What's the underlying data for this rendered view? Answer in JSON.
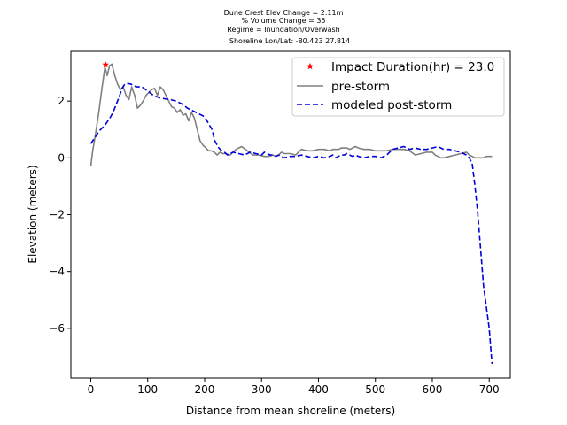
{
  "chart_data": {
    "type": "line",
    "title_lines": [
      "Dune Crest Elev Change = 2.11m",
      "% Volume Change = 35",
      "Regime = Inundation/Overwash",
      "Shoreline Lon/Lat: -80.423 27.814"
    ],
    "xlabel": "Distance from mean shoreline (meters)",
    "ylabel": "Elevation (meters)",
    "xlim": [
      -35,
      737
    ],
    "ylim": [
      -7.75,
      3.75
    ],
    "xticks": [
      0,
      100,
      200,
      300,
      400,
      500,
      600,
      700
    ],
    "yticks": [
      -6,
      -4,
      -2,
      0,
      2
    ],
    "ytick_labels": [
      "−6",
      "−4",
      "−2",
      "0",
      "2"
    ],
    "grid": false,
    "legend_position": "top-right",
    "legend": [
      "Impact Duration(hr) = 23.0",
      "pre-storm",
      "modeled post-storm"
    ],
    "colors": {
      "pre_storm": "#808080",
      "post_storm": "#0000dd",
      "impact_marker": "#ff0000"
    },
    "impact_point": {
      "x": 26,
      "y": 3.28
    },
    "series": [
      {
        "name": "pre-storm",
        "style": "solid",
        "x": [
          0,
          3,
          8,
          14,
          20,
          25,
          29,
          33,
          37,
          42,
          47,
          52,
          57,
          62,
          67,
          72,
          77,
          82,
          87,
          92,
          97,
          102,
          107,
          112,
          117,
          122,
          127,
          132,
          137,
          142,
          147,
          152,
          157,
          162,
          167,
          172,
          177,
          182,
          187,
          192,
          197,
          202,
          207,
          212,
          217,
          222,
          227,
          232,
          237,
          245,
          255,
          265,
          275,
          285,
          295,
          305,
          312,
          320,
          325,
          330,
          335,
          340,
          350,
          360,
          370,
          380,
          390,
          400,
          410,
          420,
          425,
          430,
          435,
          440,
          445,
          450,
          455,
          460,
          465,
          470,
          480,
          490,
          500,
          510,
          520,
          530,
          540,
          550,
          560,
          570,
          580,
          590,
          600,
          605,
          610,
          615,
          620,
          630,
          640,
          650,
          660,
          665,
          670,
          675,
          680,
          690,
          695,
          700,
          705
        ],
        "y": [
          -0.3,
          0.2,
          0.8,
          1.6,
          2.5,
          3.2,
          2.9,
          3.25,
          3.3,
          2.9,
          2.6,
          2.4,
          2.5,
          2.2,
          2.05,
          2.5,
          2.2,
          1.75,
          1.85,
          2.0,
          2.2,
          2.3,
          2.4,
          2.45,
          2.2,
          2.5,
          2.4,
          2.2,
          2.0,
          1.8,
          1.75,
          1.6,
          1.7,
          1.5,
          1.55,
          1.3,
          1.6,
          1.4,
          1.0,
          0.6,
          0.45,
          0.35,
          0.25,
          0.25,
          0.2,
          0.1,
          0.2,
          0.15,
          0.15,
          0.1,
          0.3,
          0.4,
          0.25,
          0.1,
          0.1,
          0.05,
          0.05,
          0.1,
          0.05,
          0.1,
          0.2,
          0.15,
          0.15,
          0.1,
          0.3,
          0.25,
          0.25,
          0.3,
          0.3,
          0.25,
          0.3,
          0.3,
          0.3,
          0.35,
          0.35,
          0.35,
          0.3,
          0.35,
          0.4,
          0.35,
          0.3,
          0.3,
          0.25,
          0.25,
          0.25,
          0.3,
          0.3,
          0.3,
          0.25,
          0.1,
          0.15,
          0.2,
          0.2,
          0.1,
          0.05,
          0.0,
          0.0,
          0.05,
          0.1,
          0.15,
          0.2,
          0.1,
          0.05,
          0.0,
          0.0,
          0.0,
          0.05,
          0.05,
          0.05
        ]
      },
      {
        "name": "modeled post-storm",
        "style": "dashed",
        "x": [
          0,
          5,
          10,
          15,
          20,
          25,
          30,
          35,
          40,
          45,
          50,
          55,
          60,
          65,
          70,
          75,
          80,
          90,
          100,
          110,
          120,
          130,
          140,
          150,
          160,
          170,
          180,
          190,
          200,
          207,
          213,
          218,
          225,
          230,
          235,
          240,
          250,
          260,
          270,
          280,
          290,
          300,
          305,
          310,
          315,
          320,
          325,
          330,
          335,
          340,
          350,
          360,
          370,
          380,
          390,
          400,
          410,
          420,
          425,
          430,
          435,
          440,
          445,
          450,
          455,
          460,
          465,
          470,
          480,
          490,
          500,
          510,
          520,
          530,
          540,
          550,
          560,
          570,
          580,
          590,
          600,
          610,
          620,
          630,
          640,
          650,
          655,
          660,
          665,
          670,
          675,
          680,
          690,
          700,
          705
        ],
        "y": [
          0.5,
          0.65,
          0.8,
          0.95,
          1.05,
          1.15,
          1.3,
          1.45,
          1.65,
          1.9,
          2.15,
          2.45,
          2.6,
          2.62,
          2.6,
          2.55,
          2.5,
          2.5,
          2.35,
          2.2,
          2.12,
          2.08,
          2.05,
          2.0,
          1.9,
          1.75,
          1.65,
          1.55,
          1.45,
          1.2,
          1.0,
          0.6,
          0.35,
          0.25,
          0.2,
          0.1,
          0.2,
          0.15,
          0.1,
          0.2,
          0.15,
          0.1,
          0.2,
          0.15,
          0.1,
          0.1,
          0.05,
          0.1,
          0.05,
          0.0,
          0.05,
          0.05,
          0.1,
          0.05,
          0.0,
          0.05,
          0.0,
          0.05,
          0.1,
          0.0,
          0.05,
          0.1,
          0.1,
          0.15,
          0.1,
          0.05,
          0.1,
          0.05,
          0.0,
          0.05,
          0.05,
          0.0,
          0.1,
          0.3,
          0.35,
          0.4,
          0.3,
          0.35,
          0.3,
          0.3,
          0.35,
          0.4,
          0.3,
          0.3,
          0.25,
          0.2,
          0.15,
          0.1,
          0.0,
          -0.2,
          -1.0,
          -2.0,
          -4.5,
          -6.0,
          -7.25
        ]
      }
    ]
  }
}
